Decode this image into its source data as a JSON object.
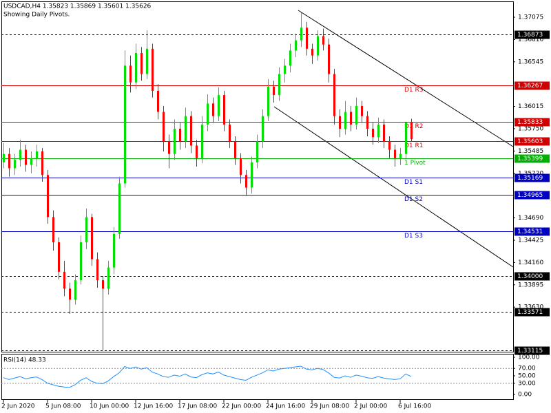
{
  "chart_data": {
    "type": "candlestick",
    "title": "USDCAD,H4  1.35823 1.35869 1.35601 1.35626",
    "subtitle": "Showing Daily Pivots.",
    "up_color": "#00e000",
    "down_color": "#ff0000",
    "ylim": [
      1.331,
      1.37263
    ],
    "yticks": [
      1.37075,
      {
        "value": 1.3681,
        "label": "1.36810"
      },
      1.36545,
      1.36015,
      {
        "value": 1.3575,
        "label": "1.35750"
      },
      1.35485,
      {
        "value": 1.3522,
        "label": "1.35220"
      },
      {
        "value": 1.3469,
        "label": "1.34690"
      },
      1.34425,
      {
        "value": 1.3416,
        "label": "1.34160"
      },
      1.33895,
      {
        "value": 1.3363,
        "label": "1.33630"
      }
    ],
    "categories": [
      "2 Jun 2020",
      null,
      null,
      null,
      null,
      null,
      null,
      null,
      "5 Jun 08:00",
      null,
      null,
      null,
      null,
      null,
      null,
      null,
      "10 Jun 00:00",
      null,
      null,
      null,
      null,
      null,
      null,
      null,
      "12 Jun 16:00",
      null,
      null,
      null,
      null,
      null,
      null,
      null,
      "17 Jun 08:00",
      null,
      null,
      null,
      null,
      null,
      null,
      null,
      "22 Jun 00:00",
      null,
      null,
      null,
      null,
      null,
      null,
      null,
      "24 Jun 16:00",
      null,
      null,
      null,
      null,
      null,
      null,
      null,
      "29 Jun 08:00",
      null,
      null,
      null,
      null,
      null,
      null,
      null,
      "2 Jul 00:00",
      null,
      null,
      null,
      null,
      null,
      null,
      null,
      "6 Jul 16:00",
      null,
      null
    ],
    "candles": [
      [
        1.3535,
        1.3558,
        1.3528,
        1.3545
      ],
      [
        1.3545,
        1.3552,
        1.3518,
        1.3528
      ],
      [
        1.3528,
        1.3545,
        1.352,
        1.3538
      ],
      [
        1.3538,
        1.3562,
        1.353,
        1.355
      ],
      [
        1.355,
        1.3556,
        1.3524,
        1.3532
      ],
      [
        1.3532,
        1.3548,
        1.3522,
        1.354
      ],
      [
        1.354,
        1.3556,
        1.353,
        1.3548
      ],
      [
        1.3548,
        1.3552,
        1.3512,
        1.352
      ],
      [
        1.352,
        1.3526,
        1.3462,
        1.347
      ],
      [
        1.347,
        1.3478,
        1.343,
        1.344
      ],
      [
        1.344,
        1.3446,
        1.3396,
        1.3405
      ],
      [
        1.3405,
        1.3418,
        1.3376,
        1.3385
      ],
      [
        1.3385,
        1.3392,
        1.3355,
        1.3372
      ],
      [
        1.3372,
        1.3402,
        1.3366,
        1.3395
      ],
      [
        1.3395,
        1.3448,
        1.339,
        1.344
      ],
      [
        1.344,
        1.348,
        1.3432,
        1.347
      ],
      [
        1.347,
        1.3474,
        1.3412,
        1.342
      ],
      [
        1.342,
        1.3428,
        1.3386,
        1.3395
      ],
      [
        1.3395,
        1.34,
        1.3312,
        1.3385
      ],
      [
        1.3385,
        1.3418,
        1.3378,
        1.341
      ],
      [
        1.341,
        1.3458,
        1.3402,
        1.345
      ],
      [
        1.345,
        1.3518,
        1.3444,
        1.351
      ],
      [
        1.351,
        1.3668,
        1.3505,
        1.365
      ],
      [
        1.365,
        1.3662,
        1.3618,
        1.363
      ],
      [
        1.363,
        1.3676,
        1.3622,
        1.3665
      ],
      [
        1.3665,
        1.3672,
        1.3632,
        1.364
      ],
      [
        1.364,
        1.3692,
        1.3634,
        1.367
      ],
      [
        1.367,
        1.3676,
        1.3612,
        1.362
      ],
      [
        1.362,
        1.3628,
        1.3586,
        1.3595
      ],
      [
        1.3595,
        1.3602,
        1.3548,
        1.356
      ],
      [
        1.356,
        1.3568,
        1.3528,
        1.3545
      ],
      [
        1.3545,
        1.3586,
        1.3538,
        1.3575
      ],
      [
        1.3575,
        1.3582,
        1.355,
        1.356
      ],
      [
        1.356,
        1.36,
        1.3552,
        1.359
      ],
      [
        1.359,
        1.3596,
        1.3546,
        1.3555
      ],
      [
        1.3555,
        1.3562,
        1.353,
        1.354
      ],
      [
        1.354,
        1.359,
        1.3534,
        1.358
      ],
      [
        1.358,
        1.3616,
        1.3572,
        1.3605
      ],
      [
        1.3605,
        1.3612,
        1.3582,
        1.359
      ],
      [
        1.359,
        1.3624,
        1.3584,
        1.3615
      ],
      [
        1.3615,
        1.362,
        1.3572,
        1.358
      ],
      [
        1.358,
        1.3586,
        1.3552,
        1.356
      ],
      [
        1.356,
        1.3566,
        1.3532,
        1.354
      ],
      [
        1.354,
        1.3546,
        1.351,
        1.352
      ],
      [
        1.352,
        1.3526,
        1.3495,
        1.3505
      ],
      [
        1.3505,
        1.3542,
        1.3498,
        1.3535
      ],
      [
        1.3535,
        1.3568,
        1.3528,
        1.356
      ],
      [
        1.356,
        1.3598,
        1.3552,
        1.359
      ],
      [
        1.359,
        1.3634,
        1.3584,
        1.3625
      ],
      [
        1.3625,
        1.3632,
        1.3606,
        1.3615
      ],
      [
        1.3615,
        1.3648,
        1.3608,
        1.364
      ],
      [
        1.364,
        1.3658,
        1.363,
        1.365
      ],
      [
        1.365,
        1.3676,
        1.3642,
        1.3668
      ],
      [
        1.3668,
        1.3688,
        1.366,
        1.368
      ],
      [
        1.368,
        1.3713,
        1.3672,
        1.3695
      ],
      [
        1.3695,
        1.3702,
        1.3662,
        1.367
      ],
      [
        1.367,
        1.3676,
        1.3652,
        1.3662
      ],
      [
        1.3662,
        1.3692,
        1.3656,
        1.3685
      ],
      [
        1.3685,
        1.3694,
        1.3668,
        1.3675
      ],
      [
        1.3675,
        1.3682,
        1.363,
        1.364
      ],
      [
        1.364,
        1.3646,
        1.358,
        1.359
      ],
      [
        1.359,
        1.3598,
        1.3565,
        1.3575
      ],
      [
        1.3575,
        1.3608,
        1.3568,
        1.3595
      ],
      [
        1.3595,
        1.3602,
        1.3572,
        1.358
      ],
      [
        1.358,
        1.3612,
        1.3574,
        1.3602
      ],
      [
        1.3602,
        1.3608,
        1.3582,
        1.359
      ],
      [
        1.359,
        1.3596,
        1.3566,
        1.3575
      ],
      [
        1.3575,
        1.3582,
        1.3556,
        1.3565
      ],
      [
        1.3565,
        1.3588,
        1.3558,
        1.358
      ],
      [
        1.358,
        1.3586,
        1.3552,
        1.356
      ],
      [
        1.356,
        1.3566,
        1.354,
        1.355
      ],
      [
        1.355,
        1.3556,
        1.353,
        1.354
      ],
      [
        1.354,
        1.3552,
        1.3532,
        1.3545
      ],
      [
        1.3545,
        1.3583,
        1.354,
        1.35823
      ],
      [
        1.35823,
        1.35869,
        1.35601,
        1.35626
      ]
    ],
    "levels": [
      {
        "price": 1.36873,
        "color": "#000000",
        "dashed": true
      },
      {
        "price": 1.36267,
        "color": "#d00000",
        "dashed": false,
        "name": "D1 R3"
      },
      {
        "price": 1.35833,
        "color": "#d00000",
        "dashed": false,
        "name": "D1 R2"
      },
      {
        "price": 1.35603,
        "color": "#d00000",
        "dashed": false,
        "name": "D1 R1"
      },
      {
        "price": 1.35399,
        "color": "#00b000",
        "dashed": false,
        "name": "1 Pivot"
      },
      {
        "price": 1.35169,
        "color": "#0000c0",
        "dashed": false,
        "name": "D1 S1"
      },
      {
        "price": 1.34965,
        "color": "#0000c0",
        "dashed": false,
        "name": "D1 S2"
      },
      {
        "price": 1.34531,
        "color": "#0000c0",
        "dashed": false,
        "name": "D1 S3"
      },
      {
        "price": {
          "value": 1.34,
          "label": "1.34000"
        },
        "color": "#000000",
        "dashed": true
      },
      {
        "price": 1.33571,
        "color": "#000000",
        "dashed": true
      },
      {
        "price": 1.33115,
        "color": "#000000",
        "dashed": true
      }
    ],
    "rsi": {
      "title": "RSI(14) 48.33",
      "color": "#1e90ff",
      "ylim": [
        0,
        100
      ],
      "yticks": [
        {
          "value": 100,
          "label": "100.00"
        },
        {
          "value": 70,
          "label": "70.00"
        },
        {
          "value": 50,
          "label": "50.00"
        },
        {
          "value": 30,
          "label": "30.00"
        },
        {
          "value": 0,
          "label": "0.00"
        }
      ],
      "levels": [
        70,
        30
      ],
      "values": [
        45,
        40,
        44,
        48,
        42,
        45,
        47,
        40,
        30,
        26,
        22,
        20,
        19,
        26,
        38,
        45,
        35,
        30,
        29,
        36,
        48,
        58,
        75,
        70,
        74,
        68,
        72,
        60,
        55,
        48,
        46,
        52,
        49,
        55,
        47,
        45,
        53,
        58,
        55,
        60,
        52,
        48,
        44,
        40,
        38,
        46,
        52,
        58,
        66,
        63,
        68,
        70,
        72,
        74,
        76,
        68,
        66,
        70,
        67,
        58,
        46,
        44,
        50,
        46,
        52,
        49,
        45,
        43,
        48,
        44,
        42,
        40,
        42,
        55,
        48.33
      ]
    }
  }
}
